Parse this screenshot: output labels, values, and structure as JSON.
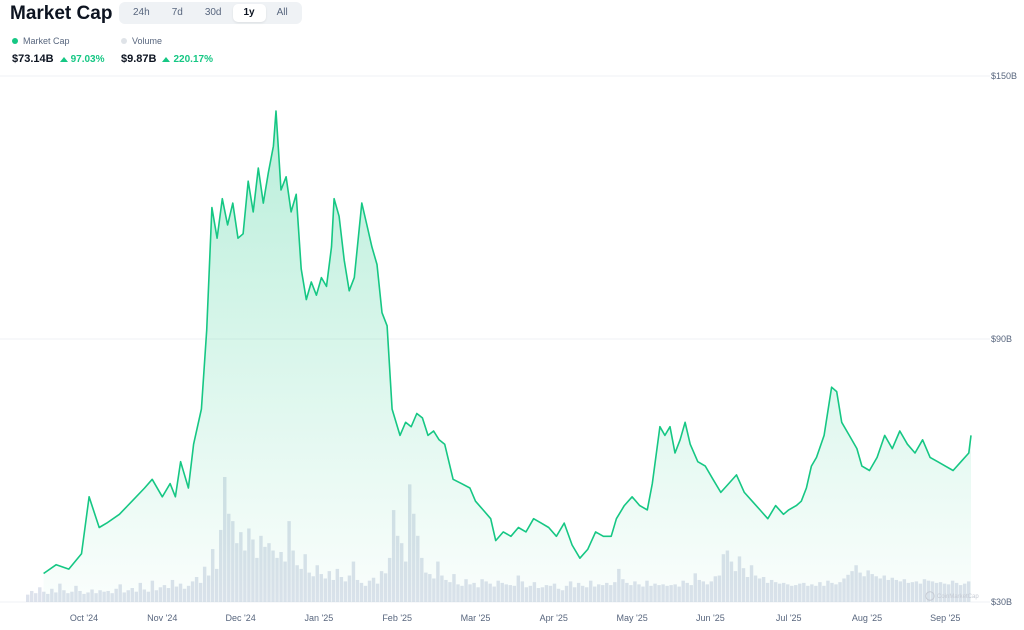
{
  "header": {
    "title": "Market Cap",
    "range_tabs": [
      {
        "label": "24h",
        "active": false
      },
      {
        "label": "7d",
        "active": false
      },
      {
        "label": "30d",
        "active": false
      },
      {
        "label": "1y",
        "active": true
      },
      {
        "label": "All",
        "active": false
      }
    ]
  },
  "legend": {
    "market_cap": {
      "label": "Market Cap",
      "value": "$73.14B",
      "change": "97.03%",
      "color": "#16c784"
    },
    "volume": {
      "label": "Volume",
      "value": "$9.87B",
      "change": "220.17%",
      "color": "#dfe3e8"
    }
  },
  "watermark": "CoinMarketCap",
  "colors": {
    "line": "#16c784",
    "grid": "#eff2f5",
    "volume": "#cfd6e4",
    "axis_text": "#58667e"
  },
  "chart_data": {
    "type": "line",
    "xlabel": "",
    "ylabel": "",
    "ylim": [
      30,
      150
    ],
    "y_ticks": [
      "$150B",
      "$90B",
      "$30B"
    ],
    "y_tick_values": [
      150,
      90,
      30
    ],
    "x_tick_labels": [
      "Oct '24",
      "Nov '24",
      "Dec '24",
      "Jan '25",
      "Feb '25",
      "Mar '25",
      "Apr '25",
      "May '25",
      "Jun '25",
      "Jul '25",
      "Aug '25",
      "Sep '25"
    ],
    "x_tick_dates": [
      "2024-10-01",
      "2024-11-01",
      "2024-12-01",
      "2025-01-01",
      "2025-02-01",
      "2025-03-01",
      "2025-04-01",
      "2025-05-01",
      "2025-06-01",
      "2025-07-01",
      "2025-08-01",
      "2025-09-01"
    ],
    "grid": true,
    "series": [
      {
        "name": "Market Cap",
        "unit": "$B",
        "points": [
          [
            "2024-09-15",
            36.5
          ],
          [
            "2024-09-20",
            38.5
          ],
          [
            "2024-09-25",
            37.5
          ],
          [
            "2024-09-30",
            41
          ],
          [
            "2024-10-03",
            54
          ],
          [
            "2024-10-07",
            47
          ],
          [
            "2024-10-10",
            48
          ],
          [
            "2024-10-15",
            50
          ],
          [
            "2024-10-20",
            53
          ],
          [
            "2024-10-25",
            56
          ],
          [
            "2024-10-28",
            58
          ],
          [
            "2024-11-01",
            54
          ],
          [
            "2024-11-04",
            57
          ],
          [
            "2024-11-06",
            54
          ],
          [
            "2024-11-08",
            62
          ],
          [
            "2024-11-11",
            56
          ],
          [
            "2024-11-13",
            66
          ],
          [
            "2024-11-16",
            74
          ],
          [
            "2024-11-18",
            92
          ],
          [
            "2024-11-20",
            120
          ],
          [
            "2024-11-22",
            113
          ],
          [
            "2024-11-24",
            122
          ],
          [
            "2024-11-26",
            116
          ],
          [
            "2024-11-28",
            121
          ],
          [
            "2024-11-30",
            113
          ],
          [
            "2024-12-02",
            114
          ],
          [
            "2024-12-04",
            126
          ],
          [
            "2024-12-06",
            119
          ],
          [
            "2024-12-08",
            129
          ],
          [
            "2024-12-10",
            121
          ],
          [
            "2024-12-12",
            128
          ],
          [
            "2024-12-14",
            134
          ],
          [
            "2024-12-15",
            142
          ],
          [
            "2024-12-17",
            124
          ],
          [
            "2024-12-19",
            127
          ],
          [
            "2024-12-21",
            119
          ],
          [
            "2024-12-23",
            123
          ],
          [
            "2024-12-25",
            106
          ],
          [
            "2024-12-27",
            99
          ],
          [
            "2024-12-29",
            103
          ],
          [
            "2024-12-31",
            100
          ],
          [
            "2025-01-02",
            104
          ],
          [
            "2025-01-04",
            102
          ],
          [
            "2025-01-06",
            111
          ],
          [
            "2025-01-07",
            122
          ],
          [
            "2025-01-09",
            118
          ],
          [
            "2025-01-11",
            108
          ],
          [
            "2025-01-13",
            101
          ],
          [
            "2025-01-15",
            104
          ],
          [
            "2025-01-18",
            121
          ],
          [
            "2025-01-20",
            116
          ],
          [
            "2025-01-22",
            111
          ],
          [
            "2025-01-24",
            107
          ],
          [
            "2025-01-26",
            96
          ],
          [
            "2025-01-28",
            93
          ],
          [
            "2025-01-30",
            74
          ],
          [
            "2025-02-02",
            68
          ],
          [
            "2025-02-04",
            71
          ],
          [
            "2025-02-06",
            70
          ],
          [
            "2025-02-08",
            73
          ],
          [
            "2025-02-10",
            72
          ],
          [
            "2025-02-12",
            68
          ],
          [
            "2025-02-14",
            69
          ],
          [
            "2025-02-16",
            67
          ],
          [
            "2025-02-18",
            66
          ],
          [
            "2025-02-21",
            58
          ],
          [
            "2025-02-24",
            57
          ],
          [
            "2025-02-27",
            56
          ],
          [
            "2025-03-01",
            53
          ],
          [
            "2025-03-04",
            51
          ],
          [
            "2025-03-07",
            49
          ],
          [
            "2025-03-09",
            44
          ],
          [
            "2025-03-12",
            46
          ],
          [
            "2025-03-15",
            45
          ],
          [
            "2025-03-18",
            47
          ],
          [
            "2025-03-21",
            46
          ],
          [
            "2025-03-24",
            49
          ],
          [
            "2025-03-27",
            48
          ],
          [
            "2025-03-30",
            47
          ],
          [
            "2025-04-02",
            45
          ],
          [
            "2025-04-05",
            48
          ],
          [
            "2025-04-08",
            43
          ],
          [
            "2025-04-11",
            40
          ],
          [
            "2025-04-14",
            42
          ],
          [
            "2025-04-17",
            46
          ],
          [
            "2025-04-20",
            45
          ],
          [
            "2025-04-23",
            45
          ],
          [
            "2025-04-25",
            49
          ],
          [
            "2025-04-28",
            52
          ],
          [
            "2025-05-01",
            54
          ],
          [
            "2025-05-04",
            52
          ],
          [
            "2025-05-07",
            51
          ],
          [
            "2025-05-09",
            57
          ],
          [
            "2025-05-12",
            70
          ],
          [
            "2025-05-14",
            68
          ],
          [
            "2025-05-16",
            70
          ],
          [
            "2025-05-18",
            64
          ],
          [
            "2025-05-20",
            67
          ],
          [
            "2025-05-22",
            71
          ],
          [
            "2025-05-24",
            66
          ],
          [
            "2025-05-27",
            62
          ],
          [
            "2025-05-30",
            61
          ],
          [
            "2025-06-02",
            58
          ],
          [
            "2025-06-05",
            55
          ],
          [
            "2025-06-08",
            57
          ],
          [
            "2025-06-11",
            59
          ],
          [
            "2025-06-14",
            55
          ],
          [
            "2025-06-17",
            53
          ],
          [
            "2025-06-20",
            51
          ],
          [
            "2025-06-23",
            49
          ],
          [
            "2025-06-26",
            52
          ],
          [
            "2025-06-29",
            50
          ],
          [
            "2025-07-01",
            51
          ],
          [
            "2025-07-04",
            52
          ],
          [
            "2025-07-06",
            53
          ],
          [
            "2025-07-08",
            56
          ],
          [
            "2025-07-10",
            61
          ],
          [
            "2025-07-12",
            63
          ],
          [
            "2025-07-15",
            68
          ],
          [
            "2025-07-18",
            79
          ],
          [
            "2025-07-20",
            78
          ],
          [
            "2025-07-22",
            71
          ],
          [
            "2025-07-25",
            68
          ],
          [
            "2025-07-28",
            65
          ],
          [
            "2025-07-30",
            61
          ],
          [
            "2025-08-02",
            60
          ],
          [
            "2025-08-05",
            63
          ],
          [
            "2025-08-08",
            68
          ],
          [
            "2025-08-11",
            65
          ],
          [
            "2025-08-14",
            69
          ],
          [
            "2025-08-17",
            66
          ],
          [
            "2025-08-20",
            64
          ],
          [
            "2025-08-23",
            67
          ],
          [
            "2025-08-26",
            63
          ],
          [
            "2025-08-29",
            62
          ],
          [
            "2025-09-01",
            61
          ],
          [
            "2025-09-04",
            60
          ],
          [
            "2025-09-07",
            62
          ],
          [
            "2025-09-10",
            64
          ],
          [
            "2025-09-12",
            68
          ]
        ]
      },
      {
        "name": "Volume",
        "values": [
          1,
          1.5,
          1.2,
          2,
          1.4,
          1.1,
          1.8,
          1.3,
          2.5,
          1.6,
          1.2,
          1.4,
          2.2,
          1.5,
          1.1,
          1.3,
          1.7,
          1.2,
          1.6,
          1.4,
          1.5,
          1.2,
          1.8,
          2.4,
          1.3,
          1.6,
          1.9,
          1.4,
          2.6,
          1.7,
          1.4,
          2.9,
          1.6,
          2,
          2.3,
          1.9,
          3,
          2.1,
          2.5,
          1.8,
          2.2,
          2.8,
          3.4,
          2.6,
          4.8,
          3.6,
          7.2,
          4.5,
          9.8,
          17,
          12,
          11,
          8,
          9.5,
          7,
          10,
          8.5,
          6,
          9,
          7.5,
          8,
          7,
          6,
          6.8,
          5.5,
          11,
          7,
          5,
          4.5,
          6.5,
          4,
          3.5,
          5,
          3.8,
          3.2,
          4.2,
          3,
          4.5,
          3.4,
          2.8,
          3.6,
          5.5,
          3,
          2.6,
          2.2,
          2.9,
          3.3,
          2.5,
          4.2,
          3.9,
          6,
          12.5,
          9,
          8,
          5.5,
          16,
          12,
          9,
          6,
          4,
          3.8,
          3.2,
          5.5,
          3.6,
          3,
          2.7,
          3.8,
          2.4,
          2.2,
          3.1,
          2.4,
          2.6,
          2,
          3.1,
          2.8,
          2.5,
          2.1,
          2.9,
          2.6,
          2.4,
          2.3,
          2.2,
          3.6,
          2.8,
          2,
          2.2,
          2.7,
          1.9,
          2,
          2.3,
          2.2,
          2.5,
          1.8,
          1.6,
          2.2,
          2.8,
          2,
          2.6,
          2.2,
          2,
          2.9,
          2.1,
          2.4,
          2.3,
          2.6,
          2.3,
          2.7,
          4.5,
          3.1,
          2.6,
          2.3,
          2.8,
          2.4,
          2.1,
          2.9,
          2.2,
          2.5,
          2.3,
          2.4,
          2.2,
          2.3,
          2.4,
          2.1,
          2.9,
          2.6,
          2.3,
          3.9,
          3,
          2.8,
          2.4,
          2.8,
          3.5,
          3.6,
          6.5,
          7,
          5.5,
          4.2,
          6.2,
          4.6,
          3.4,
          5,
          3.6,
          3.2,
          3.4,
          2.6,
          3,
          2.7,
          2.5,
          2.6,
          2.4,
          2.2,
          2.3,
          2.5,
          2.6,
          2.2,
          2.4,
          2.2,
          2.7,
          2.2,
          2.9,
          2.6,
          2.4,
          2.7,
          3.2,
          3.7,
          4.2,
          5,
          4,
          3.5,
          4.3,
          3.8,
          3.5,
          3.2,
          3.6,
          3,
          3.3,
          3,
          2.8,
          3.1,
          2.6,
          2.7,
          2.8,
          2.5,
          3.1,
          2.9,
          2.8,
          2.6,
          2.7,
          2.5,
          2.4,
          2.9,
          2.6,
          2.3,
          2.5,
          2.8
        ]
      }
    ]
  }
}
